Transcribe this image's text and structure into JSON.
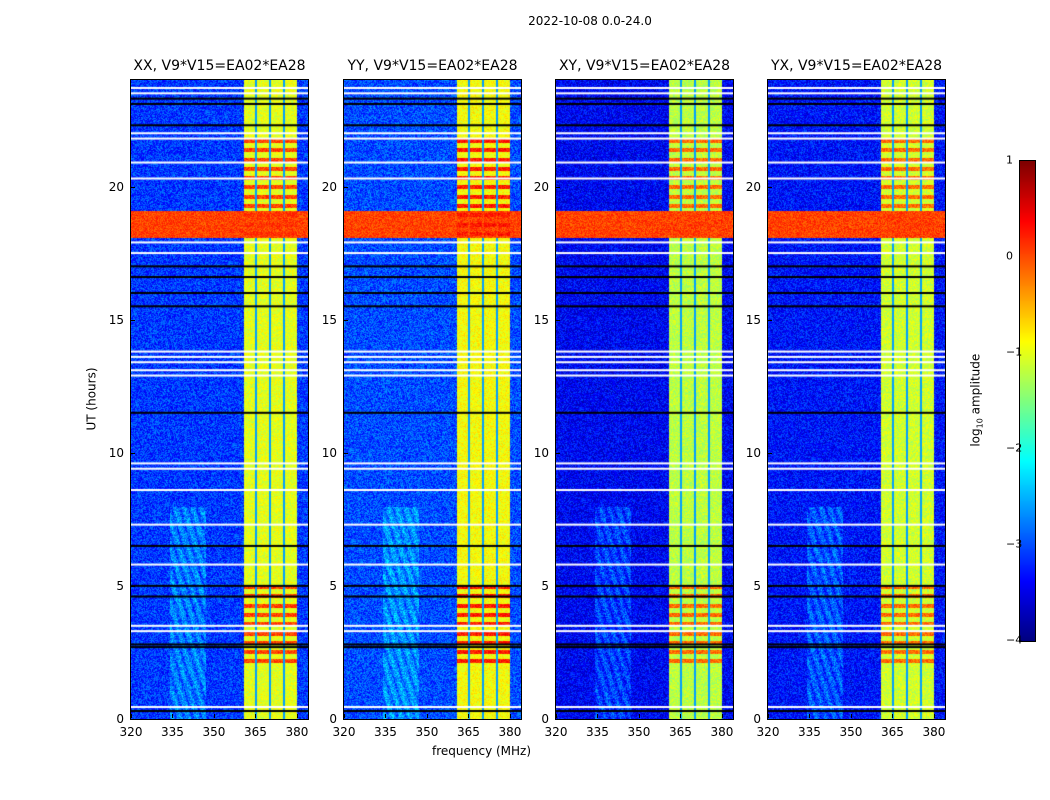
{
  "chart_data": {
    "type": "heatmap",
    "suptitle": "2022-10-08 0.0-24.0",
    "xlabel": "frequency (MHz)",
    "ylabel": "UT (hours)",
    "xlim": [
      320,
      384
    ],
    "ylim": [
      0,
      24
    ],
    "xticks": [
      "320",
      "335",
      "350",
      "365",
      "380"
    ],
    "xtick_values": [
      320,
      335,
      350,
      365,
      380
    ],
    "yticks": [
      "0",
      "5",
      "10",
      "15",
      "20"
    ],
    "ytick_values": [
      0,
      5,
      10,
      15,
      20
    ],
    "colormap": "jet",
    "colorbar": {
      "label_prefix": "log",
      "label_sub": "10",
      "label_suffix": " amplitude",
      "range": [
        -4,
        1
      ],
      "ticks": [
        "1",
        "0",
        "−1",
        "−2",
        "−3",
        "−4"
      ],
      "tick_values": [
        1,
        0,
        -1,
        -2,
        -3,
        -4
      ]
    },
    "panels": [
      {
        "title": "XX, V9*V15=EA02*EA28",
        "background": -3.1,
        "band_level": -1.0,
        "band_peak": 0.2
      },
      {
        "title": "YY, V9*V15=EA02*EA28",
        "background": -3.0,
        "band_level": -0.9,
        "band_peak": 0.4
      },
      {
        "title": "XY, V9*V15=EA02*EA28",
        "background": -3.4,
        "band_level": -1.2,
        "band_peak": 0.0
      },
      {
        "title": "YX, V9*V15=EA02*EA28",
        "background": -3.3,
        "band_level": -1.1,
        "band_peak": 0.0
      }
    ],
    "rfi_band_mhz": [
      360.5,
      380
    ],
    "band_gaps_mhz": [
      365,
      370,
      375
    ],
    "broadband_rfi_hours": [
      18.1,
      19.1
    ],
    "broadband_rfi_level": 0.3,
    "band_strong_hours": [
      [
        18.0,
        22.0
      ],
      [
        2.0,
        5.0
      ]
    ],
    "flagged_hours_white": [
      0.45,
      3.3,
      3.5,
      5.8,
      7.3,
      8.6,
      9.4,
      9.6,
      12.9,
      13.1,
      13.4,
      13.6,
      13.8,
      17.5,
      17.9,
      20.3,
      20.9,
      21.8,
      22.0,
      23.5,
      23.7
    ],
    "flagged_hours_black": [
      0.3,
      2.7,
      2.8,
      4.6,
      5.0,
      6.5,
      11.5,
      15.5,
      16.0,
      16.6,
      17.0,
      22.3,
      23.1,
      23.3
    ]
  }
}
